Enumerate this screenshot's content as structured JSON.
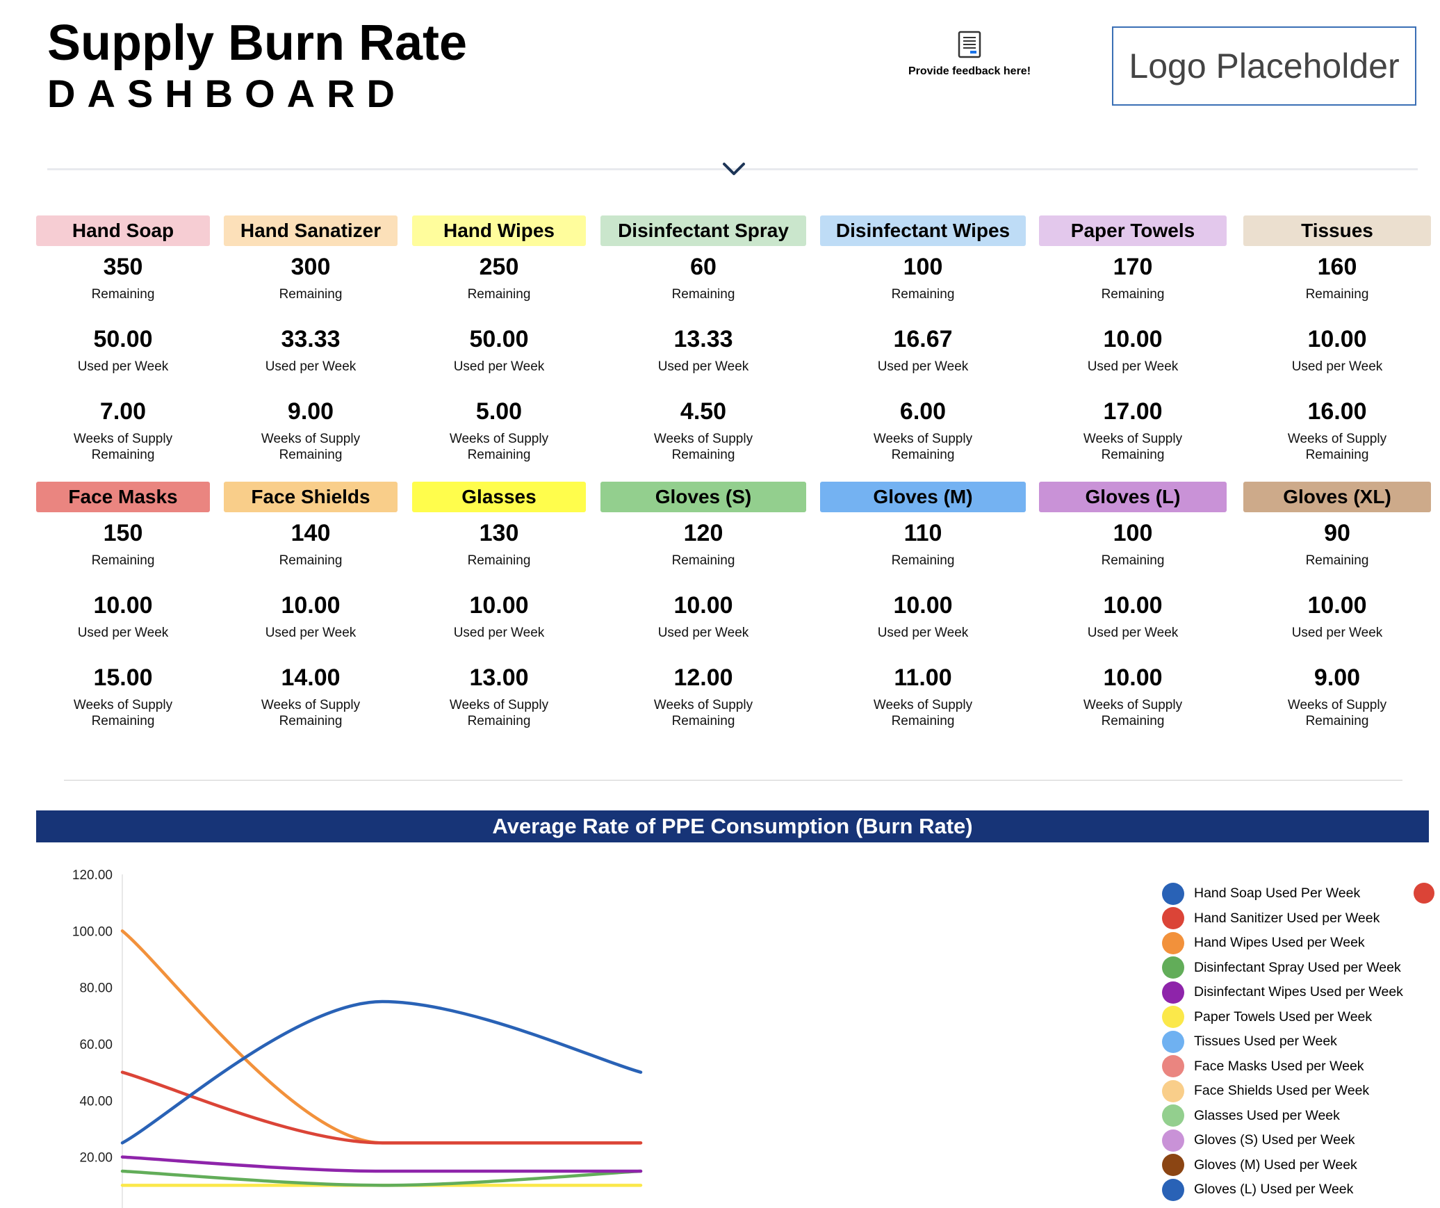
{
  "header": {
    "title": "Supply Burn Rate",
    "subtitle": "DASHBOARD",
    "feedback_label": "Provide feedback here!",
    "logo_text": "Logo Placeholder"
  },
  "cards": [
    {
      "name": "Hand Soap",
      "color": "#f6cdd3",
      "remaining": "350",
      "used": "50.00",
      "weeks": "7.00"
    },
    {
      "name": "Hand Sanatizer",
      "color": "#fce0b9",
      "remaining": "300",
      "used": "33.33",
      "weeks": "9.00"
    },
    {
      "name": "Hand Wipes",
      "color": "#fffd9c",
      "remaining": "250",
      "used": "50.00",
      "weeks": "5.00"
    },
    {
      "name": "Disinfectant Spray",
      "color": "#cae6cc",
      "remaining": "60",
      "used": "13.33",
      "weeks": "4.50"
    },
    {
      "name": "Disinfectant Wipes",
      "color": "#bedcf6",
      "remaining": "100",
      "used": "16.67",
      "weeks": "6.00"
    },
    {
      "name": "Paper Towels",
      "color": "#e3c8ec",
      "remaining": "170",
      "used": "10.00",
      "weeks": "17.00"
    },
    {
      "name": "Tissues",
      "color": "#ebdfcf",
      "remaining": "160",
      "used": "10.00",
      "weeks": "16.00"
    },
    {
      "name": "Face Masks",
      "color": "#ea8580",
      "remaining": "150",
      "used": "10.00",
      "weeks": "15.00"
    },
    {
      "name": "Face Shields",
      "color": "#f9ce8a",
      "remaining": "140",
      "used": "10.00",
      "weeks": "14.00"
    },
    {
      "name": "Glasses",
      "color": "#fffd4c",
      "remaining": "130",
      "used": "10.00",
      "weeks": "13.00"
    },
    {
      "name": "Gloves (S)",
      "color": "#93cf8e",
      "remaining": "120",
      "used": "10.00",
      "weeks": "12.00"
    },
    {
      "name": "Gloves (M)",
      "color": "#74b2f2",
      "remaining": "110",
      "used": "10.00",
      "weeks": "11.00"
    },
    {
      "name": "Gloves (L)",
      "color": "#c992d7",
      "remaining": "100",
      "used": "10.00",
      "weeks": "10.00"
    },
    {
      "name": "Gloves (XL)",
      "color": "#cdaa8a",
      "remaining": "90",
      "used": "10.00",
      "weeks": "9.00"
    }
  ],
  "labels": {
    "remaining": "Remaining",
    "used": "Used per Week",
    "weeks_line1": "Weeks of Supply",
    "weeks_line2": "Remaining"
  },
  "chart_data": {
    "type": "line",
    "title": "Average Rate of PPE Consumption (Burn Rate)",
    "ylim": [
      0,
      120
    ],
    "yticks": [
      "20.00",
      "40.00",
      "60.00",
      "80.00",
      "100.00",
      "120.00"
    ],
    "legend_position": "right",
    "x": [
      0,
      1,
      2
    ],
    "series": [
      {
        "name": "Hand Soap Used Per Week",
        "color": "#2962b6",
        "values": [
          25,
          75,
          50
        ]
      },
      {
        "name": "Hand Sanitizer Used per Week",
        "color": "#db4437",
        "values": [
          50,
          25,
          25
        ]
      },
      {
        "name": "Hand Wipes Used per Week",
        "color": "#f2913b",
        "values": [
          100,
          25,
          25
        ]
      },
      {
        "name": "Disinfectant Spray Used per Week",
        "color": "#62ad59",
        "values": [
          15,
          10,
          15
        ]
      },
      {
        "name": "Disinfectant Wipes Used per Week",
        "color": "#8e24aa",
        "values": [
          20,
          15,
          15
        ]
      },
      {
        "name": "Paper Towels Used per Week",
        "color": "#fbe84a",
        "values": [
          10,
          10,
          10
        ]
      },
      {
        "name": "Tissues Used per Week",
        "color": "#6fb1f1",
        "values": null
      },
      {
        "name": "Face Masks Used per Week",
        "color": "#ea8580",
        "values": null
      },
      {
        "name": "Face Shields Used per Week",
        "color": "#f9ce8a",
        "values": null
      },
      {
        "name": "Glasses Used per Week",
        "color": "#93cf8e",
        "values": null
      },
      {
        "name": "Gloves (S) Used per Week",
        "color": "#c992d7",
        "values": null
      },
      {
        "name": "Gloves (M) Used per Week",
        "color": "#8b4513",
        "values": null
      },
      {
        "name": "Gloves (L) Used per Week",
        "color": "#2962b6",
        "values": null
      }
    ]
  }
}
